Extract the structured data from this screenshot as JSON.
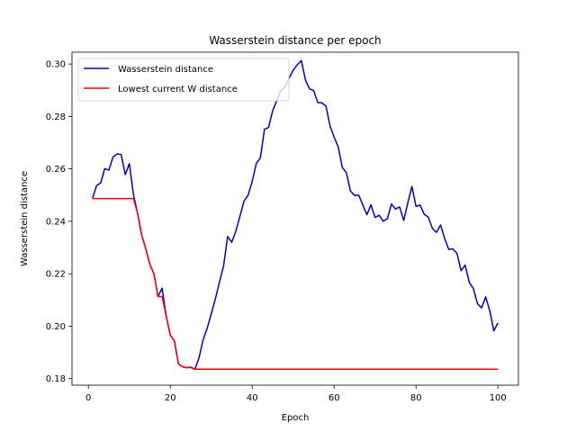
{
  "chart_data": {
    "type": "line",
    "title": "Wasserstein distance per epoch",
    "xlabel": "Epoch",
    "ylabel": "Wasserstein distance",
    "xlim": [
      -4.0,
      105.0
    ],
    "ylim": [
      0.1775,
      0.3045
    ],
    "xticks": [
      0,
      20,
      40,
      60,
      80,
      100
    ],
    "yticks": [
      0.18,
      0.2,
      0.22,
      0.24,
      0.26,
      0.28,
      0.3
    ],
    "ytick_labels": [
      "0.18",
      "0.20",
      "0.22",
      "0.24",
      "0.26",
      "0.28",
      "0.30"
    ],
    "grid": false,
    "legend_position": "top-left",
    "series": [
      {
        "name": "Wasserstein distance",
        "color": "#0000cc",
        "x": [
          1,
          2,
          3,
          4,
          5,
          6,
          7,
          8,
          9,
          10,
          11,
          12,
          13,
          14,
          15,
          16,
          17,
          18,
          19,
          20,
          21,
          22,
          23,
          24,
          25,
          26,
          27,
          28,
          29,
          30,
          31,
          32,
          33,
          34,
          35,
          36,
          37,
          38,
          39,
          40,
          41,
          42,
          43,
          44,
          45,
          46,
          47,
          48,
          49,
          50,
          51,
          52,
          53,
          54,
          55,
          56,
          57,
          58,
          59,
          60,
          61,
          62,
          63,
          64,
          65,
          66,
          67,
          68,
          69,
          70,
          71,
          72,
          73,
          74,
          75,
          76,
          77,
          78,
          79,
          80,
          81,
          82,
          83,
          84,
          85,
          86,
          87,
          88,
          89,
          90,
          91,
          92,
          93,
          94,
          95,
          96,
          97,
          98,
          99,
          100
        ],
        "y": [
          0.2487,
          0.2536,
          0.2546,
          0.2601,
          0.2595,
          0.2645,
          0.2657,
          0.2655,
          0.2578,
          0.262,
          0.2502,
          0.2432,
          0.2348,
          0.2296,
          0.2236,
          0.22,
          0.2113,
          0.2145,
          0.2039,
          0.1966,
          0.1944,
          0.1856,
          0.1845,
          0.1842,
          0.1844,
          0.1836,
          0.1878,
          0.1947,
          0.1992,
          0.2047,
          0.2104,
          0.2168,
          0.2229,
          0.2342,
          0.232,
          0.2362,
          0.2419,
          0.2477,
          0.25,
          0.2552,
          0.2621,
          0.2642,
          0.2751,
          0.2758,
          0.2822,
          0.2861,
          0.2898,
          0.2912,
          0.2946,
          0.2976,
          0.2997,
          0.3013,
          0.2939,
          0.2905,
          0.2899,
          0.2853,
          0.2852,
          0.284,
          0.2764,
          0.2721,
          0.2684,
          0.2606,
          0.2585,
          0.2515,
          0.2499,
          0.25,
          0.2463,
          0.2425,
          0.2463,
          0.2415,
          0.2423,
          0.24,
          0.241,
          0.2466,
          0.2447,
          0.2455,
          0.2403,
          0.2471,
          0.2533,
          0.2457,
          0.2462,
          0.2427,
          0.2416,
          0.2373,
          0.2358,
          0.2386,
          0.2334,
          0.2293,
          0.2295,
          0.2278,
          0.2212,
          0.2233,
          0.2167,
          0.2144,
          0.2086,
          0.207,
          0.2112,
          0.2059,
          0.1982,
          0.2013
        ]
      },
      {
        "name": "Lowest current W distance",
        "color": "#ff0000",
        "x": [
          1,
          2,
          3,
          4,
          5,
          6,
          7,
          8,
          9,
          10,
          11,
          12,
          13,
          14,
          15,
          16,
          17,
          18,
          19,
          20,
          21,
          22,
          23,
          24,
          25,
          26,
          27,
          28,
          29,
          30,
          31,
          32,
          33,
          34,
          35,
          36,
          37,
          38,
          39,
          40,
          41,
          42,
          43,
          44,
          45,
          46,
          47,
          48,
          49,
          50,
          51,
          52,
          53,
          54,
          55,
          56,
          57,
          58,
          59,
          60,
          61,
          62,
          63,
          64,
          65,
          66,
          67,
          68,
          69,
          70,
          71,
          72,
          73,
          74,
          75,
          76,
          77,
          78,
          79,
          80,
          81,
          82,
          83,
          84,
          85,
          86,
          87,
          88,
          89,
          90,
          91,
          92,
          93,
          94,
          95,
          96,
          97,
          98,
          99,
          100
        ],
        "y": [
          0.2487,
          0.2487,
          0.2487,
          0.2487,
          0.2487,
          0.2487,
          0.2487,
          0.2487,
          0.2487,
          0.2487,
          0.2487,
          0.2432,
          0.2348,
          0.2296,
          0.2236,
          0.22,
          0.2113,
          0.2113,
          0.2039,
          0.1966,
          0.1944,
          0.1856,
          0.1845,
          0.1842,
          0.1842,
          0.1836,
          0.1836,
          0.1836,
          0.1836,
          0.1836,
          0.1836,
          0.1836,
          0.1836,
          0.1836,
          0.1836,
          0.1836,
          0.1836,
          0.1836,
          0.1836,
          0.1836,
          0.1836,
          0.1836,
          0.1836,
          0.1836,
          0.1836,
          0.1836,
          0.1836,
          0.1836,
          0.1836,
          0.1836,
          0.1836,
          0.1836,
          0.1836,
          0.1836,
          0.1836,
          0.1836,
          0.1836,
          0.1836,
          0.1836,
          0.1836,
          0.1836,
          0.1836,
          0.1836,
          0.1836,
          0.1836,
          0.1836,
          0.1836,
          0.1836,
          0.1836,
          0.1836,
          0.1836,
          0.1836,
          0.1836,
          0.1836,
          0.1836,
          0.1836,
          0.1836,
          0.1836,
          0.1836,
          0.1836,
          0.1836,
          0.1836,
          0.1836,
          0.1836,
          0.1836,
          0.1836,
          0.1836,
          0.1836,
          0.1836,
          0.1836,
          0.1836,
          0.1836,
          0.1836,
          0.1836,
          0.1836,
          0.1836,
          0.1836,
          0.1836,
          0.1836,
          0.1836
        ]
      }
    ]
  }
}
